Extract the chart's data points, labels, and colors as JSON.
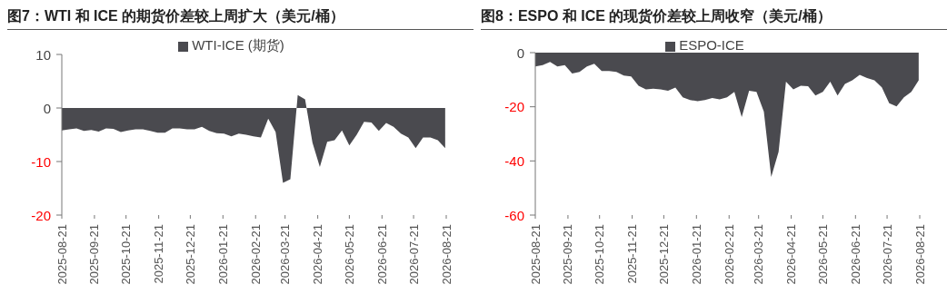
{
  "chart_data": [
    {
      "type": "area",
      "title": "图7：WTI 和 ICE 的期货价差较上周扩大（美元/桶）",
      "x": [
        "2025-08-21",
        "2025-08-28",
        "2025-09-04",
        "2025-09-11",
        "2025-09-18",
        "2025-09-25",
        "2025-10-02",
        "2025-10-09",
        "2025-10-16",
        "2025-10-23",
        "2025-10-30",
        "2025-11-06",
        "2025-11-13",
        "2025-11-20",
        "2025-11-27",
        "2025-12-04",
        "2025-12-11",
        "2025-12-18",
        "2025-12-25",
        "2026-01-01",
        "2026-01-08",
        "2026-01-15",
        "2026-01-22",
        "2026-01-29",
        "2026-02-05",
        "2026-02-12",
        "2026-02-19",
        "2026-02-26",
        "2026-03-05",
        "2026-03-12",
        "2026-03-19",
        "2026-03-26",
        "2026-04-02",
        "2026-04-09",
        "2026-04-16",
        "2026-04-23",
        "2026-04-30",
        "2026-05-07",
        "2026-05-14",
        "2026-05-21",
        "2026-05-28",
        "2026-06-04",
        "2026-06-11",
        "2026-06-18",
        "2026-06-25",
        "2026-07-02",
        "2026-07-09",
        "2026-07-16",
        "2026-07-23",
        "2026-07-30",
        "2026-08-06",
        "2026-08-13",
        "2026-08-20"
      ],
      "series": [
        {
          "name": "WTI-ICE (期货)",
          "color": "#4a4a4f",
          "values": [
            -4.2,
            -4.0,
            -3.8,
            -4.3,
            -4.1,
            -4.4,
            -3.8,
            -3.9,
            -4.5,
            -4.2,
            -4.0,
            -4.0,
            -4.3,
            -4.6,
            -4.6,
            -3.8,
            -3.8,
            -4.0,
            -4.0,
            -3.5,
            -4.3,
            -4.7,
            -4.8,
            -5.3,
            -4.8,
            -5.0,
            -5.3,
            -5.5,
            -2.0,
            -4.5,
            -14.0,
            -13.3,
            2.4,
            1.6,
            -6.5,
            -11.0,
            -6.3,
            -6.0,
            -4.2,
            -7.0,
            -5.0,
            -2.6,
            -2.7,
            -4.3,
            -2.8,
            -3.5,
            -4.8,
            -5.5,
            -7.5,
            -5.5,
            -5.5,
            -6.0,
            -7.5
          ]
        }
      ],
      "xlim": [
        "2025-08-21",
        "2026-08-21"
      ],
      "xticks": [
        "2025-08-21",
        "2025-09-21",
        "2025-10-21",
        "2025-11-21",
        "2025-12-21",
        "2026-01-21",
        "2026-02-21",
        "2026-03-21",
        "2026-04-21",
        "2026-05-21",
        "2026-06-21",
        "2026-07-21",
        "2026-08-21"
      ],
      "ylim": [
        -20,
        10
      ],
      "yticks": [
        -20,
        -10,
        0,
        10
      ],
      "legend": "top",
      "grid": false
    },
    {
      "type": "area",
      "title": "图8：ESPO 和 ICE 的现货价差较上周收窄（美元/桶）",
      "x": [
        "2025-08-21",
        "2025-08-28",
        "2025-09-04",
        "2025-09-11",
        "2025-09-18",
        "2025-09-25",
        "2025-10-02",
        "2025-10-09",
        "2025-10-16",
        "2025-10-23",
        "2025-10-30",
        "2025-11-06",
        "2025-11-13",
        "2025-11-20",
        "2025-11-27",
        "2025-12-04",
        "2025-12-11",
        "2025-12-18",
        "2025-12-25",
        "2026-01-01",
        "2026-01-08",
        "2026-01-15",
        "2026-01-22",
        "2026-01-29",
        "2026-02-05",
        "2026-02-12",
        "2026-02-19",
        "2026-02-26",
        "2026-03-05",
        "2026-03-12",
        "2026-03-19",
        "2026-03-26",
        "2026-04-02",
        "2026-04-09",
        "2026-04-16",
        "2026-04-23",
        "2026-04-30",
        "2026-05-07",
        "2026-05-14",
        "2026-05-21",
        "2026-05-28",
        "2026-06-04",
        "2026-06-11",
        "2026-06-18",
        "2026-06-25",
        "2026-07-02",
        "2026-07-09",
        "2026-07-16",
        "2026-07-23",
        "2026-07-30",
        "2026-08-06",
        "2026-08-13",
        "2026-08-20"
      ],
      "series": [
        {
          "name": "ESPO-ICE",
          "color": "#4a4a4f",
          "values": [
            -5.1,
            -4.6,
            -3.4,
            -5.1,
            -4.6,
            -7.7,
            -7.1,
            -5.1,
            -4.1,
            -6.8,
            -6.8,
            -7.1,
            -8.5,
            -8.8,
            -12.2,
            -13.6,
            -13.3,
            -13.6,
            -14.1,
            -12.9,
            -16.5,
            -17.5,
            -17.9,
            -17.5,
            -16.8,
            -17.3,
            -16.5,
            -14.5,
            -23.8,
            -14.1,
            -14.5,
            -21.8,
            -45.9,
            -36.6,
            -10.7,
            -13.6,
            -12.2,
            -12.4,
            -15.8,
            -14.5,
            -10.7,
            -15.8,
            -11.6,
            -10.2,
            -8.2,
            -9.4,
            -10.2,
            -12.8,
            -18.7,
            -19.9,
            -16.5,
            -14.5,
            -10.2
          ]
        }
      ],
      "xlim": [
        "2025-08-21",
        "2026-08-21"
      ],
      "xticks": [
        "2025-08-21",
        "2025-09-21",
        "2025-10-21",
        "2025-11-21",
        "2025-12-21",
        "2026-01-21",
        "2026-02-21",
        "2026-03-21",
        "2026-04-21",
        "2026-05-21",
        "2026-06-21",
        "2026-07-21",
        "2026-08-21"
      ],
      "ylim": [
        -60,
        0
      ],
      "yticks": [
        -60,
        -40,
        -20,
        0
      ],
      "legend": "top",
      "grid": false
    }
  ]
}
